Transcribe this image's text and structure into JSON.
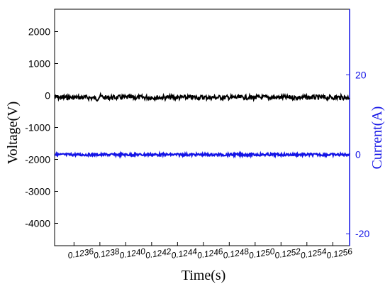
{
  "chart_data": {
    "type": "line",
    "xlabel": "Time(s)",
    "ylabel": "Voltage(V)",
    "y2label": "Current(A)",
    "xlim": [
      0.12345,
      0.12573
    ],
    "ylim": [
      -4700,
      2700
    ],
    "y2lim": [
      -23,
      36.5
    ],
    "x_ticks": [
      0.1236,
      0.1238,
      0.124,
      0.1242,
      0.1244,
      0.1246,
      0.1248,
      0.125,
      0.1252,
      0.1254,
      0.1256
    ],
    "x_tick_labels": [
      "0.1236",
      "0.1238",
      "0.1240",
      "0.1242",
      "0.1244",
      "0.1246",
      "0.1248",
      "0.1250",
      "0.1252",
      "0.1254",
      "0.1256"
    ],
    "y_ticks": [
      2000,
      1000,
      0,
      -1000,
      -2000,
      -3000,
      -4000
    ],
    "y_tick_labels": [
      "2000",
      "1000",
      "0",
      "-1000",
      "-2000",
      "-3000",
      "-4000"
    ],
    "y2_ticks": [
      20,
      0,
      -20
    ],
    "y2_tick_labels": [
      "20",
      "0",
      "-20"
    ],
    "grid": false,
    "colors": {
      "voltage": "#000000",
      "current": "#1414e6"
    },
    "series": [
      {
        "axis": "left",
        "color": "#000000",
        "x": [
          0.12345,
          0.1236,
          0.1237,
          0.12375,
          0.12378,
          0.1238,
          0.12382,
          0.12385,
          0.1239,
          0.124,
          0.1242,
          0.1244,
          0.1246,
          0.1248,
          0.125,
          0.1252,
          0.1254,
          0.1256,
          0.12573
        ],
        "values": [
          -60,
          -60,
          -60,
          -80,
          -100,
          -20,
          -50,
          -70,
          -60,
          -60,
          -60,
          -60,
          -60,
          -60,
          -60,
          -60,
          -60,
          -60,
          -60
        ]
      },
      {
        "axis": "right",
        "color": "#1414e6",
        "x": [
          0.12345,
          0.1236,
          0.1238,
          0.124,
          0.1242,
          0.1244,
          0.1246,
          0.1248,
          0.125,
          0.1252,
          0.1254,
          0.1256,
          0.12573
        ],
        "values": [
          -0.1,
          -0.1,
          -0.1,
          -0.1,
          -0.1,
          -0.1,
          -0.1,
          -0.1,
          -0.1,
          -0.1,
          -0.1,
          -0.1,
          -0.1
        ]
      }
    ]
  }
}
